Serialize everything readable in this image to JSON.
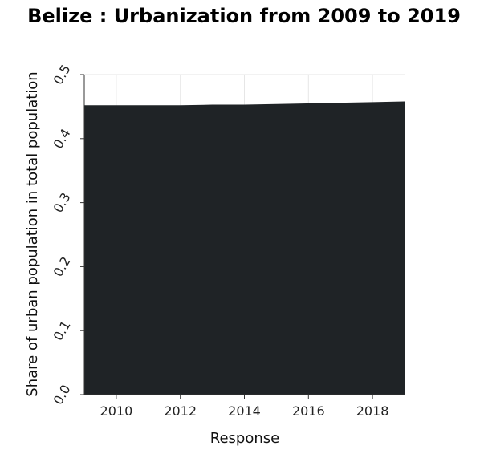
{
  "chart_data": {
    "type": "area",
    "title": "Belize : Urbanization from 2009 to 2019",
    "xlabel": "Response",
    "ylabel": "Share of urban population in total population",
    "x": [
      2009,
      2010,
      2011,
      2012,
      2013,
      2014,
      2015,
      2016,
      2017,
      2018,
      2019
    ],
    "series": [
      {
        "values": [
          0.452,
          0.452,
          0.452,
          0.452,
          0.453,
          0.453,
          0.454,
          0.455,
          0.456,
          0.457,
          0.458
        ]
      }
    ],
    "xlim": [
      2009,
      2019
    ],
    "ylim": [
      0,
      0.5
    ],
    "x_ticks": [
      2010,
      2012,
      2014,
      2016,
      2018
    ],
    "y_ticks": [
      0.0,
      0.1,
      0.2,
      0.3,
      0.4,
      0.5
    ],
    "x_tick_labels": [
      "2010",
      "2012",
      "2014",
      "2016",
      "2018"
    ],
    "y_tick_labels": [
      "0.0",
      "0.1",
      "0.2",
      "0.3",
      "0.4",
      "0.5"
    ],
    "grid": true,
    "fill_color": "#1f2326",
    "grid_color": "#e6e6e6"
  }
}
